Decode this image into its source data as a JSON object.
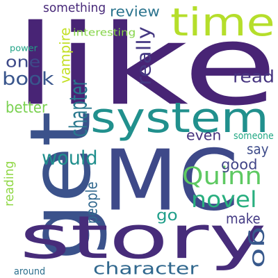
{
  "words": [
    {
      "text": "like",
      "color": "#482475"
    },
    {
      "text": "MC",
      "color": "#3e4989"
    },
    {
      "text": "get",
      "color": "#3b528b"
    },
    {
      "text": "story",
      "color": "#472c7a"
    },
    {
      "text": "system",
      "color": "#21908d"
    },
    {
      "text": "time",
      "color": "#b5de2b"
    },
    {
      "text": "go",
      "color": "#38598c"
    },
    {
      "text": "Quinn",
      "color": "#5ec962"
    },
    {
      "text": "novel",
      "color": "#29af7f"
    },
    {
      "text": "character",
      "color": "#31688e"
    },
    {
      "text": "would",
      "color": "#218f8d"
    },
    {
      "text": "one",
      "color": "#3e4a89"
    },
    {
      "text": "book",
      "color": "#39558c"
    },
    {
      "text": "chapter",
      "color": "#2a788e"
    },
    {
      "text": "review",
      "color": "#2b748e"
    },
    {
      "text": "really",
      "color": "#453882"
    },
    {
      "text": "read",
      "color": "#463480"
    },
    {
      "text": "better",
      "color": "#7ad151"
    },
    {
      "text": "vampire",
      "color": "#c2df23"
    },
    {
      "text": "something",
      "color": "#482979"
    },
    {
      "text": "say",
      "color": "#3e4c8a"
    },
    {
      "text": "good",
      "color": "#414487"
    },
    {
      "text": "even",
      "color": "#46327e"
    },
    {
      "text": "make",
      "color": "#443b84"
    },
    {
      "text": "people",
      "color": "#31688e"
    },
    {
      "text": "reading",
      "color": "#8fd744"
    },
    {
      "text": "go",
      "color": "#1f9e89"
    },
    {
      "text": "interesting",
      "color": "#86d549"
    },
    {
      "text": "power",
      "color": "#20a386"
    },
    {
      "text": "someone",
      "color": "#22a884"
    },
    {
      "text": "around",
      "color": "#2d708e"
    }
  ]
}
